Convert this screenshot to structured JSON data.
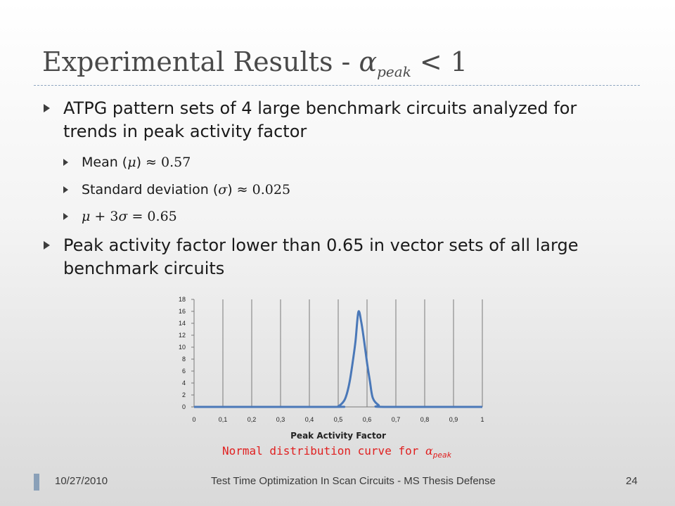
{
  "slide": {
    "title_text": "Experimental Results - ",
    "title_alpha": "α",
    "title_sub": "peak",
    "title_rel": " < 1",
    "bullets": [
      {
        "text": "ATPG pattern sets of 4 large benchmark circuits analyzed for trends in peak activity factor"
      },
      {
        "text": "Peak activity factor lower than 0.65 in vector sets of all large benchmark circuits"
      }
    ],
    "subbullets": {
      "mean_label": "Mean (",
      "mean_sym": "μ",
      "mean_rel": ") ≈ ",
      "mean_val": "0.57",
      "sd_label": "Standard deviation (",
      "sd_sym": "σ",
      "sd_rel": ") ≈ ",
      "sd_val": "0.025",
      "sum_expr_a": "μ",
      "sum_expr_b": " + 3",
      "sum_expr_c": "σ",
      "sum_expr_d": " = 0.65"
    },
    "caption_text": "Normal distribution curve for ",
    "caption_alpha": "α",
    "caption_sub": "peak"
  },
  "footer": {
    "date": "10/27/2010",
    "center": "Test Time Optimization In Scan Circuits - MS Thesis Defense",
    "page": "24"
  },
  "colors": {
    "line": "#4a78b8",
    "caption": "#e02020",
    "accent": "#8aa0b8"
  },
  "chart_data": {
    "type": "line",
    "xlabel": "Peak Activity Factor",
    "ylabel": "",
    "x_ticks": [
      "0",
      "0,1",
      "0,2",
      "0,3",
      "0,4",
      "0,5",
      "0,6",
      "0,7",
      "0,8",
      "0,9",
      "1"
    ],
    "y_ticks": [
      "0",
      "2",
      "4",
      "6",
      "8",
      "10",
      "12",
      "14",
      "16",
      "18"
    ],
    "xlim": [
      0,
      1
    ],
    "ylim": [
      0,
      18
    ],
    "grid": "vertical",
    "legend": "none",
    "series": [
      {
        "x": [
          0,
          0.48,
          0.5,
          0.52,
          0.53,
          0.54,
          0.55,
          0.56,
          0.57,
          0.58,
          0.59,
          0.6,
          0.61,
          0.62,
          0.64,
          0.66,
          1
        ],
        "y": [
          0,
          0.0,
          0.1,
          1.0,
          2.2,
          4.3,
          7.4,
          11.0,
          15.9,
          14.2,
          11.0,
          7.4,
          4.3,
          1.5,
          0.3,
          0.0,
          0
        ]
      }
    ]
  }
}
